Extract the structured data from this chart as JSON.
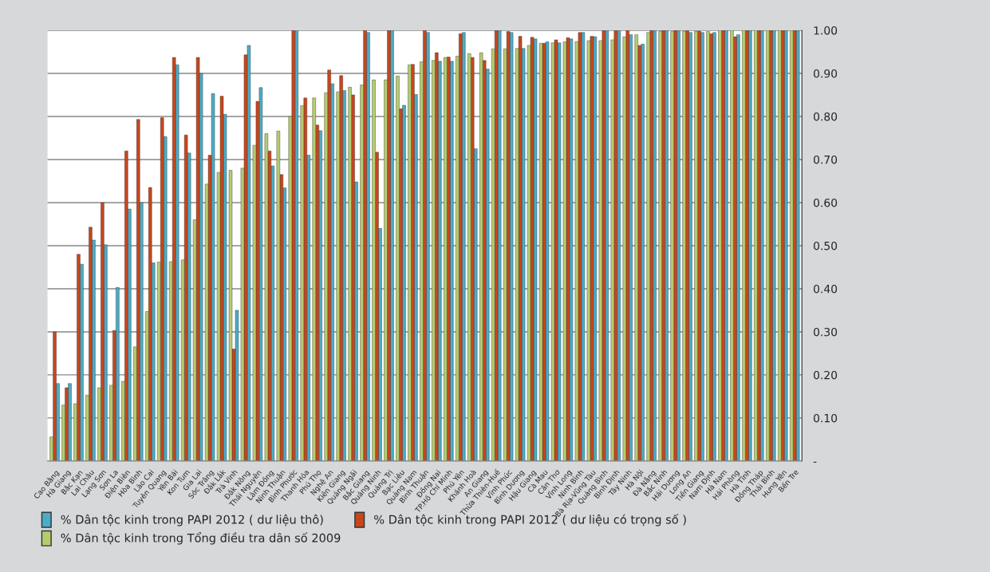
{
  "chart_data": {
    "type": "bar",
    "categories": [
      "Cao Bằng",
      "Hà Giang",
      "Bắc Kạn",
      "Lai Châu",
      "Lạng Sơn",
      "Sơn La",
      "Điện Biên",
      "Hòa Bình",
      "Lào Cai",
      "Tuyên Quang",
      "Yên Bái",
      "Kon Tum",
      "Gia Lai",
      "Sóc Trăng",
      "Đắk Lắk",
      "Trà Vinh",
      "Đắk Nông",
      "Thái Nguyên",
      "Lâm Đồng",
      "Ninh Thuận",
      "Bình Phước",
      "Thanh Hóa",
      "Phú Thọ",
      "Nghệ An",
      "Kiên Giang",
      "Quảng Ngãi",
      "Bắc Giang",
      "Quảng Ninh",
      "Quảng Trị",
      "Bạc Liêu",
      "Quảng Nam",
      "Bình Thuận",
      "Đồng Nai",
      "TP.Hồ Chí Minh",
      "Phú Yên",
      "Khánh Hoà",
      "An Giang",
      "Thừa Thiên-Huế",
      "Vĩnh Phúc",
      "Bình Dương",
      "Hậu Giang",
      "Cà Mau",
      "Cần Thơ",
      "Vĩnh Long",
      "Ninh Bình",
      "Bà Rịa-Vũng Tàu",
      "Quảng Bình",
      "Bình Định",
      "Tây Ninh",
      "Hà Nội",
      "Đà Nẵng",
      "Bắc Ninh",
      "Hải Dương",
      "Long An",
      "Tiền Giang",
      "Nam Định",
      "Hà Nam",
      "Hải Phòng",
      "Hà Tĩnh",
      "Đồng Tháp",
      "Thái Bình",
      "Hưng Yên",
      "Bến Tre"
    ],
    "series": [
      {
        "name": "% Dân tộc kinh trong PAPI 2012 ( dư liệu thô)",
        "color": "#4bacc6",
        "values": [
          0.18,
          0.18,
          0.457,
          0.513,
          0.502,
          0.403,
          0.585,
          0.6,
          0.46,
          0.753,
          0.92,
          0.715,
          0.9,
          0.853,
          0.805,
          0.35,
          0.965,
          0.867,
          0.685,
          0.634,
          1.0,
          0.71,
          0.767,
          0.876,
          0.86,
          0.648,
          0.995,
          0.54,
          1.0,
          0.826,
          0.851,
          0.995,
          0.928,
          0.928,
          0.995,
          0.725,
          0.91,
          1.0,
          0.995,
          0.958,
          0.98,
          0.973,
          0.971,
          0.98,
          0.995,
          0.985,
          1.0,
          1.0,
          0.99,
          0.968,
          1.0,
          1.0,
          1.0,
          0.995,
          0.995,
          0.995,
          1.0,
          0.99,
          1.0,
          1.0,
          1.0,
          1.0,
          1.0
        ]
      },
      {
        "name": "% Dân tộc kinh trong PAPI 2012 ( dư liệu có trọng số )",
        "color": "#c8461c",
        "values": [
          0.3,
          0.17,
          0.48,
          0.543,
          0.6,
          0.303,
          0.72,
          0.793,
          0.635,
          0.797,
          0.937,
          0.757,
          0.937,
          0.71,
          0.847,
          0.26,
          0.943,
          0.835,
          0.72,
          0.665,
          1.0,
          0.843,
          0.78,
          0.908,
          0.895,
          0.85,
          1.0,
          0.717,
          1.0,
          0.818,
          0.921,
          1.0,
          0.948,
          0.938,
          0.992,
          0.937,
          0.93,
          1.0,
          0.997,
          0.986,
          0.984,
          0.97,
          0.978,
          0.983,
          0.995,
          0.986,
          1.0,
          1.0,
          1.0,
          0.965,
          1.0,
          1.0,
          1.0,
          0.999,
          0.998,
          0.992,
          1.0,
          0.985,
          1.0,
          1.0,
          1.0,
          1.0,
          1.0
        ]
      },
      {
        "name": "% Dân tộc kinh trong Tổng điều tra dân số 2009",
        "color": "#b5cc6e",
        "values": [
          0.056,
          0.13,
          0.133,
          0.153,
          0.17,
          0.176,
          0.185,
          0.265,
          0.347,
          0.462,
          0.463,
          0.467,
          0.56,
          0.643,
          0.67,
          0.675,
          0.68,
          0.733,
          0.76,
          0.766,
          0.8,
          0.825,
          0.843,
          0.855,
          0.857,
          0.868,
          0.873,
          0.885,
          0.885,
          0.894,
          0.92,
          0.927,
          0.93,
          0.937,
          0.94,
          0.946,
          0.948,
          0.957,
          0.957,
          0.958,
          0.965,
          0.97,
          0.971,
          0.973,
          0.974,
          0.976,
          0.976,
          0.978,
          0.985,
          0.99,
          0.995,
          0.998,
          0.997,
          0.998,
          0.998,
          0.997,
          1.0,
          1.0,
          1.0,
          1.0,
          1.0,
          1.0,
          1.0
        ]
      }
    ],
    "ylim": [
      0,
      1
    ],
    "yticks": [
      {
        "value": 0,
        "label": "-"
      },
      {
        "value": 0.1,
        "label": "0.10"
      },
      {
        "value": 0.2,
        "label": "0.20"
      },
      {
        "value": 0.3,
        "label": "0.30"
      },
      {
        "value": 0.4,
        "label": "0.40"
      },
      {
        "value": 0.5,
        "label": "0.50"
      },
      {
        "value": 0.6,
        "label": "0.60"
      },
      {
        "value": 0.7,
        "label": "0.70"
      },
      {
        "value": 0.8,
        "label": "0.80"
      },
      {
        "value": 0.9,
        "label": "0.90"
      },
      {
        "value": 1.0,
        "label": "1.00"
      }
    ],
    "grid": "y",
    "legend": "bottom"
  }
}
